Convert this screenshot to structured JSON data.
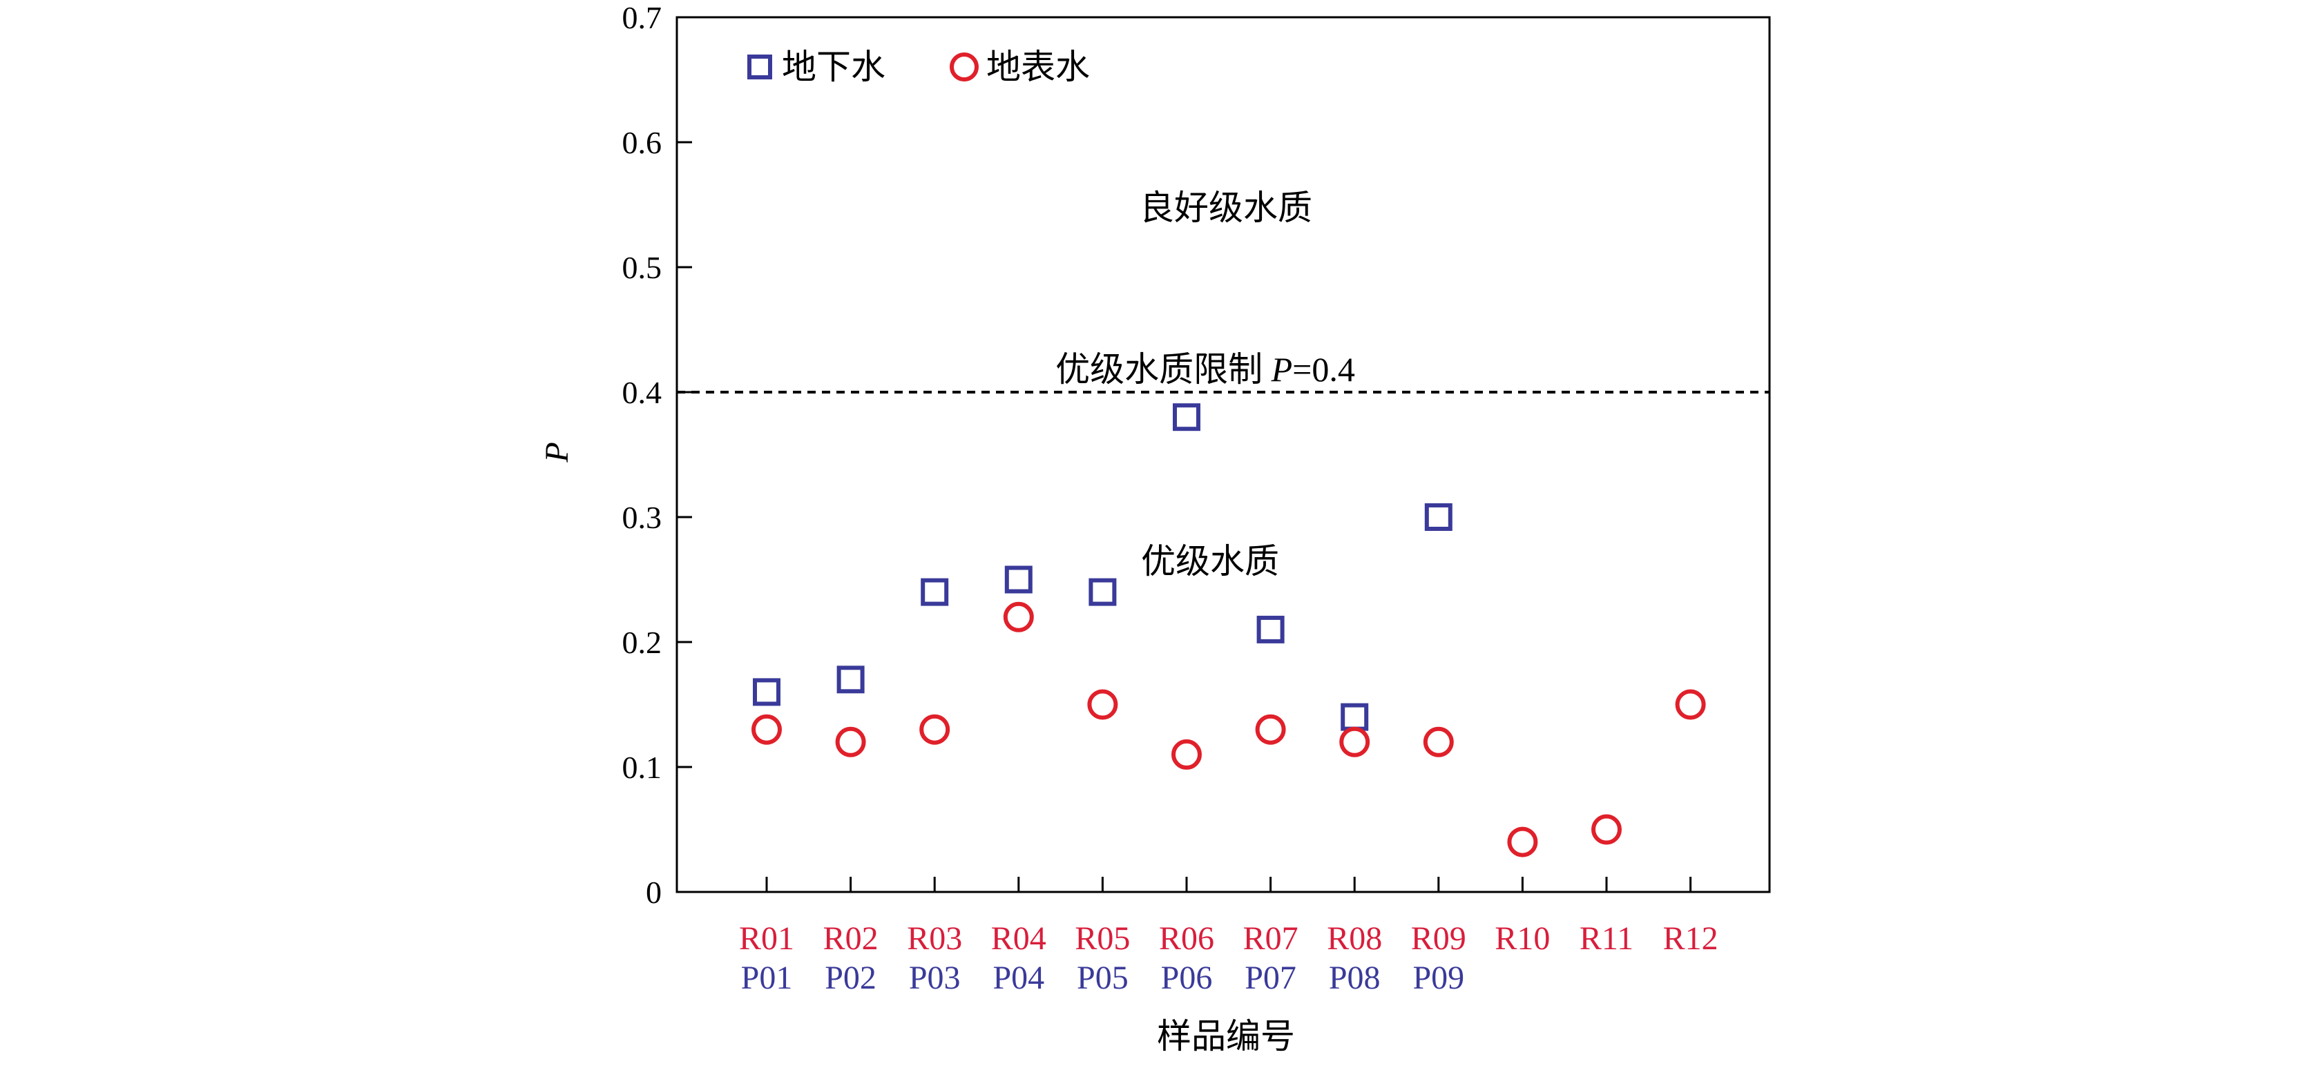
{
  "chart_data": {
    "type": "scatter",
    "title": "",
    "xlabel": "样品编号",
    "ylabel": "P",
    "ylim": [
      0,
      0.7
    ],
    "yticks": [
      "0",
      "0.1",
      "0.2",
      "0.3",
      "0.4",
      "0.5",
      "0.6",
      "0.7"
    ],
    "categories_surface": [
      "R01",
      "R02",
      "R03",
      "R04",
      "R05",
      "R06",
      "R07",
      "R08",
      "R09",
      "R10",
      "R11",
      "R12"
    ],
    "categories_ground": [
      "P01",
      "P02",
      "P03",
      "P04",
      "P05",
      "P06",
      "P07",
      "P08",
      "P09"
    ],
    "series": [
      {
        "name": "地下水",
        "marker": "square",
        "color": "#3a3a9a",
        "values": [
          0.16,
          0.17,
          0.24,
          0.25,
          0.24,
          0.38,
          0.21,
          0.14,
          0.3
        ]
      },
      {
        "name": "地表水",
        "marker": "circle",
        "color": "#e0202a",
        "values": [
          0.13,
          0.12,
          0.13,
          0.22,
          0.15,
          0.11,
          0.13,
          0.12,
          0.12,
          0.04,
          0.05,
          0.15
        ]
      }
    ],
    "threshold": {
      "value": 0.4,
      "label_prefix": "优级水质限制 ",
      "label_var": "P",
      "label_suffix": "=0.4"
    },
    "annotations": {
      "above": "良好级水质",
      "below": "优级水质"
    },
    "legend_position": "top-left",
    "colors": {
      "surface_label": "#d81e3c",
      "ground_label": "#3a3a9a",
      "axis": "#000000"
    }
  }
}
